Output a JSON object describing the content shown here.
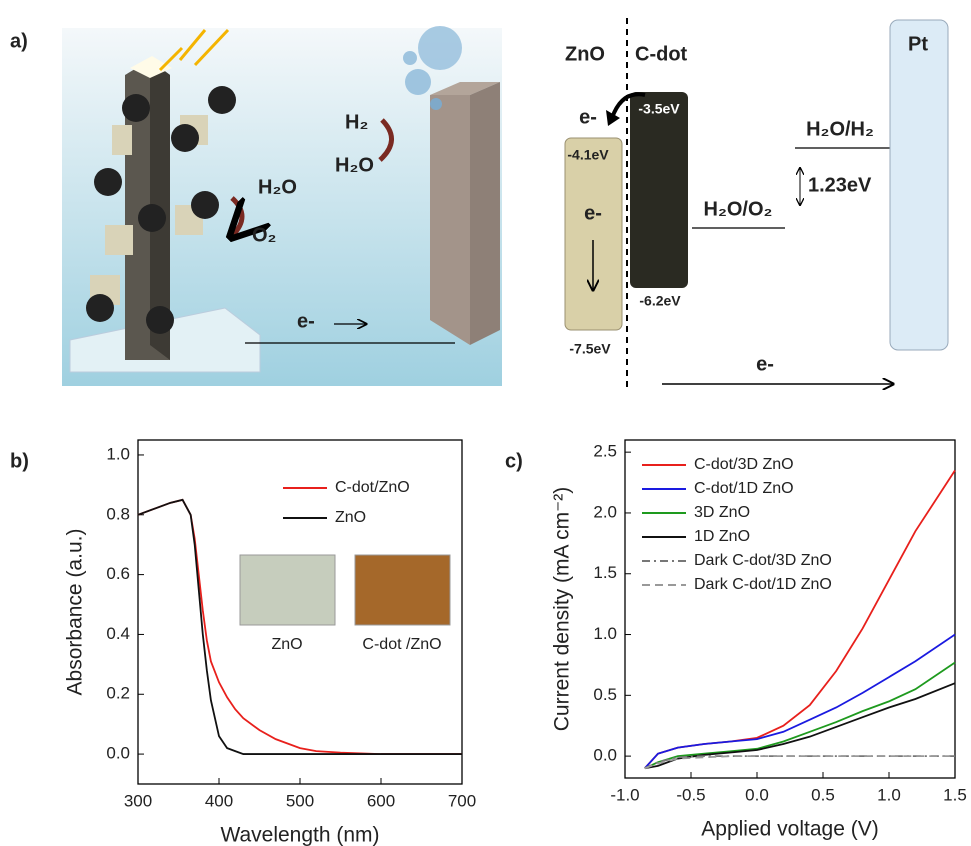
{
  "panel_a": {
    "label": "a)",
    "illustration": {
      "oxidation_in": "H₂O",
      "oxidation_out": "O₂",
      "reduction_out": "H₂",
      "reduction_in": "H₂O",
      "electron": "e-"
    },
    "band_diagram": {
      "zno": "ZnO",
      "cdot": "C-dot",
      "electron_transfer": "e-",
      "cdot_top": "-3.5eV",
      "zno_top": "-4.1eV",
      "zno_electron": "e-",
      "cdot_bottom": "-6.2eV",
      "zno_bottom": "-7.5eV",
      "oxygen_level": "H₂O/O₂",
      "hydrogen_level": "H₂O/H₂",
      "gap": "1.23eV",
      "pt": "Pt",
      "circuit_electron": "e-"
    }
  },
  "chart_data": [
    {
      "type": "line",
      "panel_label": "b)",
      "x_label": "Wavelength (nm)",
      "y_label": "Absorbance (a.u.)",
      "x": [
        300,
        320,
        340,
        355,
        365,
        370,
        375,
        380,
        385,
        390,
        400,
        410,
        420,
        430,
        450,
        470,
        500,
        520,
        550,
        600,
        650,
        700
      ],
      "series": [
        {
          "name": "C-dot/ZnO",
          "color": "#e8201c",
          "linestyle": "solid",
          "values": [
            0.8,
            0.82,
            0.84,
            0.85,
            0.8,
            0.72,
            0.6,
            0.48,
            0.38,
            0.31,
            0.24,
            0.19,
            0.15,
            0.12,
            0.08,
            0.05,
            0.02,
            0.01,
            0.005,
            0,
            0,
            0
          ]
        },
        {
          "name": "ZnO",
          "color": "#111111",
          "linestyle": "solid",
          "values": [
            0.8,
            0.82,
            0.84,
            0.85,
            0.8,
            0.7,
            0.55,
            0.4,
            0.28,
            0.18,
            0.06,
            0.02,
            0.01,
            0,
            0,
            0,
            0,
            0,
            0,
            0,
            0,
            0
          ]
        }
      ],
      "xlim": [
        300,
        700
      ],
      "xticks": [
        300,
        400,
        500,
        600,
        700
      ],
      "ylim": [
        -0.1,
        1.05
      ],
      "yticks": [
        {
          "value": 0,
          "label": "0.0"
        },
        0.2,
        0.4,
        0.6,
        0.8,
        {
          "value": 1,
          "label": "1.0"
        }
      ],
      "legend": "upper right",
      "inset_labels": [
        "ZnO",
        "C-dot /ZnO"
      ]
    },
    {
      "type": "line",
      "panel_label": "c)",
      "x_label": "Applied voltage (V)",
      "y_label": "Current density (mA cm⁻²)",
      "x": [
        -0.85,
        -0.75,
        -0.6,
        -0.4,
        -0.2,
        0,
        0.2,
        0.4,
        0.6,
        0.8,
        1.0,
        1.2,
        1.5
      ],
      "series": [
        {
          "name": "C-dot/3D ZnO",
          "color": "#e8201c",
          "linestyle": "solid",
          "values": [
            -0.1,
            0.02,
            0.07,
            0.1,
            0.12,
            0.15,
            0.25,
            0.42,
            0.7,
            1.05,
            1.45,
            1.85,
            2.35
          ]
        },
        {
          "name": "C-dot/1D ZnO",
          "color": "#1a1ae0",
          "linestyle": "solid",
          "values": [
            -0.1,
            0.02,
            0.07,
            0.1,
            0.12,
            0.14,
            0.2,
            0.3,
            0.4,
            0.52,
            0.65,
            0.78,
            1.0
          ]
        },
        {
          "name": "3D ZnO",
          "color": "#1e9a1e",
          "linestyle": "solid",
          "values": [
            -0.1,
            -0.05,
            0,
            0.02,
            0.04,
            0.06,
            0.12,
            0.2,
            0.28,
            0.37,
            0.45,
            0.55,
            0.77
          ]
        },
        {
          "name": "1D ZnO",
          "color": "#111111",
          "linestyle": "solid",
          "values": [
            -0.1,
            -0.08,
            -0.02,
            0.01,
            0.03,
            0.05,
            0.1,
            0.16,
            0.24,
            0.32,
            0.4,
            0.47,
            0.6
          ]
        },
        {
          "name": "Dark C-dot/3D ZnO",
          "color": "#777777",
          "linestyle": "dash-dot",
          "values": [
            -0.1,
            -0.05,
            -0.01,
            0,
            0,
            0,
            0,
            0,
            0,
            0,
            0,
            0,
            0
          ]
        },
        {
          "name": "Dark C-dot/1D ZnO",
          "color": "#999999",
          "linestyle": "dashed",
          "values": [
            -0.1,
            -0.06,
            -0.02,
            -0.01,
            0,
            0,
            0,
            0,
            0,
            0,
            0,
            0,
            0
          ]
        }
      ],
      "xlim": [
        -1.0,
        1.5
      ],
      "xticks": [
        {
          "value": -1,
          "label": "-1.0"
        },
        -0.5,
        {
          "value": 0,
          "label": "0.0"
        },
        0.5,
        {
          "value": 1,
          "label": "1.0"
        },
        1.5
      ],
      "ylim": [
        -0.18,
        2.6
      ],
      "yticks": [
        {
          "value": 0,
          "label": "0.0"
        },
        0.5,
        {
          "value": 1,
          "label": "1.0"
        },
        1.5,
        {
          "value": 2,
          "label": "2.0"
        },
        2.5
      ],
      "legend": "upper left"
    }
  ]
}
